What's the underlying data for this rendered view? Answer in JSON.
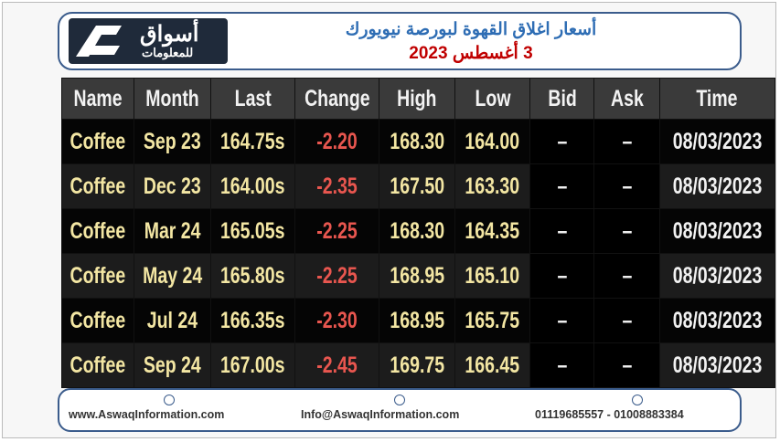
{
  "header": {
    "logo_main": "أسواق",
    "logo_sub": "للمعلومات",
    "title": "أسعار اغلاق القهوة لبورصة نيويورك",
    "date": "3 أغسطس 2023"
  },
  "table": {
    "columns": [
      "Name",
      "Month",
      "Last",
      "Change",
      "High",
      "Low",
      "Bid",
      "Ask",
      "Time"
    ],
    "rows": [
      [
        "Coffee",
        "Sep 23",
        "164.75s",
        "-2.20",
        "168.30",
        "164.00",
        "–",
        "–",
        "08/03/2023"
      ],
      [
        "Coffee",
        "Dec 23",
        "164.00s",
        "-2.35",
        "167.50",
        "163.30",
        "–",
        "–",
        "08/03/2023"
      ],
      [
        "Coffee",
        "Mar 24",
        "165.05s",
        "-2.25",
        "168.30",
        "164.35",
        "–",
        "–",
        "08/03/2023"
      ],
      [
        "Coffee",
        "May 24",
        "165.80s",
        "-2.25",
        "168.95",
        "165.10",
        "–",
        "–",
        "08/03/2023"
      ],
      [
        "Coffee",
        "Jul 24",
        "166.35s",
        "-2.30",
        "168.95",
        "165.75",
        "–",
        "–",
        "08/03/2023"
      ],
      [
        "Coffee",
        "Sep 24",
        "167.00s",
        "-2.45",
        "169.75",
        "166.45",
        "–",
        "–",
        "08/03/2023"
      ]
    ]
  },
  "footer": {
    "website": "www.AswaqInformation.com",
    "email": "Info@AswaqInformation.com",
    "phones": "01119685557 - 01008883384"
  }
}
